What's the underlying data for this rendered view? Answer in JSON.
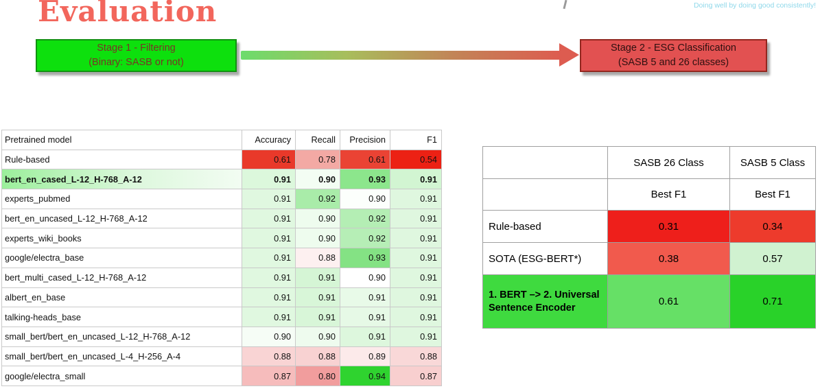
{
  "slide": {
    "title": "Evaluation",
    "tagline": "Doing well by doing good consistently!"
  },
  "theme": {
    "title_color": "#f2665c",
    "tagline_color": "#8fd8ea",
    "background": "#ffffff"
  },
  "pipeline": {
    "stage1": {
      "line1": "Stage 1 - Filtering",
      "line2": "(Binary: SASB or not)",
      "bg": "#0de00d",
      "text_color": "#7a3326",
      "border_color": "#129212"
    },
    "stage2": {
      "line1": "Stage 2 - ESG Classification",
      "line2": "(SASB 5 and 26 classes)",
      "bg": "#e25151",
      "text_color": "#2e1010",
      "border_color": "#92271f"
    },
    "arrow_start_color": "#6cdc6c",
    "arrow_end_color": "#dd5c50"
  },
  "left_table": {
    "headers": [
      "Pretrained model",
      "Accuracy",
      "Recall",
      "Precision",
      "F1"
    ],
    "rows": [
      {
        "model": "Rule-based",
        "bold": false,
        "values": [
          "0.61",
          "0.78",
          "0.61",
          "0.54"
        ],
        "colors": [
          "#e9392a",
          "#f3a9a4",
          "#ea4334",
          "#ec2114"
        ]
      },
      {
        "model": "bert_en_cased_L-12_H-768_A-12",
        "bold": true,
        "values": [
          "0.91",
          "0.90",
          "0.93",
          "0.91"
        ],
        "colors": [
          "#dcf8dc",
          "#f3fdf3",
          "#8ce68c",
          "#d2f5d2"
        ]
      },
      {
        "model": "experts_pubmed",
        "bold": false,
        "values": [
          "0.91",
          "0.92",
          "0.90",
          "0.91"
        ],
        "colors": [
          "#e0f8e0",
          "#a9eca9",
          "#fcfffc",
          "#dff7df"
        ]
      },
      {
        "model": "bert_en_uncased_L-12_H-768_A-12",
        "bold": false,
        "values": [
          "0.91",
          "0.90",
          "0.92",
          "0.91"
        ],
        "colors": [
          "#e0f8e0",
          "#eefcee",
          "#b4eeb4",
          "#dff7df"
        ]
      },
      {
        "model": "experts_wiki_books",
        "bold": false,
        "values": [
          "0.91",
          "0.90",
          "0.92",
          "0.91"
        ],
        "colors": [
          "#e0f8e0",
          "#eefcee",
          "#b6eeb6",
          "#dff7df"
        ]
      },
      {
        "model": "google/electra_base",
        "bold": false,
        "values": [
          "0.91",
          "0.88",
          "0.93",
          "0.91"
        ],
        "colors": [
          "#e0f8e0",
          "#fdf0f0",
          "#84e284",
          "#dff7df"
        ]
      },
      {
        "model": "bert_multi_cased_L-12_H-768_A-12",
        "bold": false,
        "values": [
          "0.91",
          "0.91",
          "0.90",
          "0.91"
        ],
        "colors": [
          "#e0f8e0",
          "#d5f5d5",
          "#ffffff",
          "#dff7df"
        ]
      },
      {
        "model": "albert_en_base",
        "bold": false,
        "values": [
          "0.91",
          "0.91",
          "0.91",
          "0.91"
        ],
        "colors": [
          "#e0f8e0",
          "#d8f6d8",
          "#e8fae8",
          "#dff7df"
        ]
      },
      {
        "model": "talking-heads_base",
        "bold": false,
        "values": [
          "0.91",
          "0.91",
          "0.91",
          "0.91"
        ],
        "colors": [
          "#e0f8e0",
          "#d8f6d8",
          "#e6f9e6",
          "#dff7df"
        ]
      },
      {
        "model": "small_bert/bert_en_uncased_L-12_H-768_A-12",
        "bold": false,
        "values": [
          "0.90",
          "0.90",
          "0.91",
          "0.91"
        ],
        "colors": [
          "#f6fdf6",
          "#eefbee",
          "#ddf7dd",
          "#dff7df"
        ]
      },
      {
        "model": "small_bert/bert_en_uncased_L-4_H-256_A-4",
        "bold": false,
        "values": [
          "0.88",
          "0.88",
          "0.89",
          "0.88"
        ],
        "colors": [
          "#f9d4d4",
          "#f8d2d2",
          "#fceaea",
          "#f9d8d8"
        ]
      },
      {
        "model": "google/electra_small",
        "bold": false,
        "values": [
          "0.87",
          "0.80",
          "0.94",
          "0.87"
        ],
        "colors": [
          "#f6bcbc",
          "#f19d9d",
          "#2fd32f",
          "#f8cfcf"
        ]
      }
    ]
  },
  "right_table": {
    "col_headers": [
      "SASB 26 Class",
      "SASB 5 Class"
    ],
    "sub_headers": [
      "Best F1",
      "Best F1"
    ],
    "rows": [
      {
        "label": "Rule-based",
        "bold": false,
        "label_bg": "#ffffff",
        "values": [
          "0.31",
          "0.34"
        ],
        "colors": [
          "#ee1f1b",
          "#ed3b2c"
        ]
      },
      {
        "label": "SOTA (ESG-BERT*)",
        "bold": false,
        "label_bg": "#ffffff",
        "values": [
          "0.38",
          "0.57"
        ],
        "colors": [
          "#f15a4d",
          "#d0f2d0"
        ]
      },
      {
        "label": "1. BERT –> 2. Universal Sentence Encoder",
        "bold": true,
        "label_bg": "#3fda3f",
        "values": [
          "0.61",
          "0.71"
        ],
        "colors": [
          "#66e066",
          "#29d229"
        ]
      }
    ]
  }
}
